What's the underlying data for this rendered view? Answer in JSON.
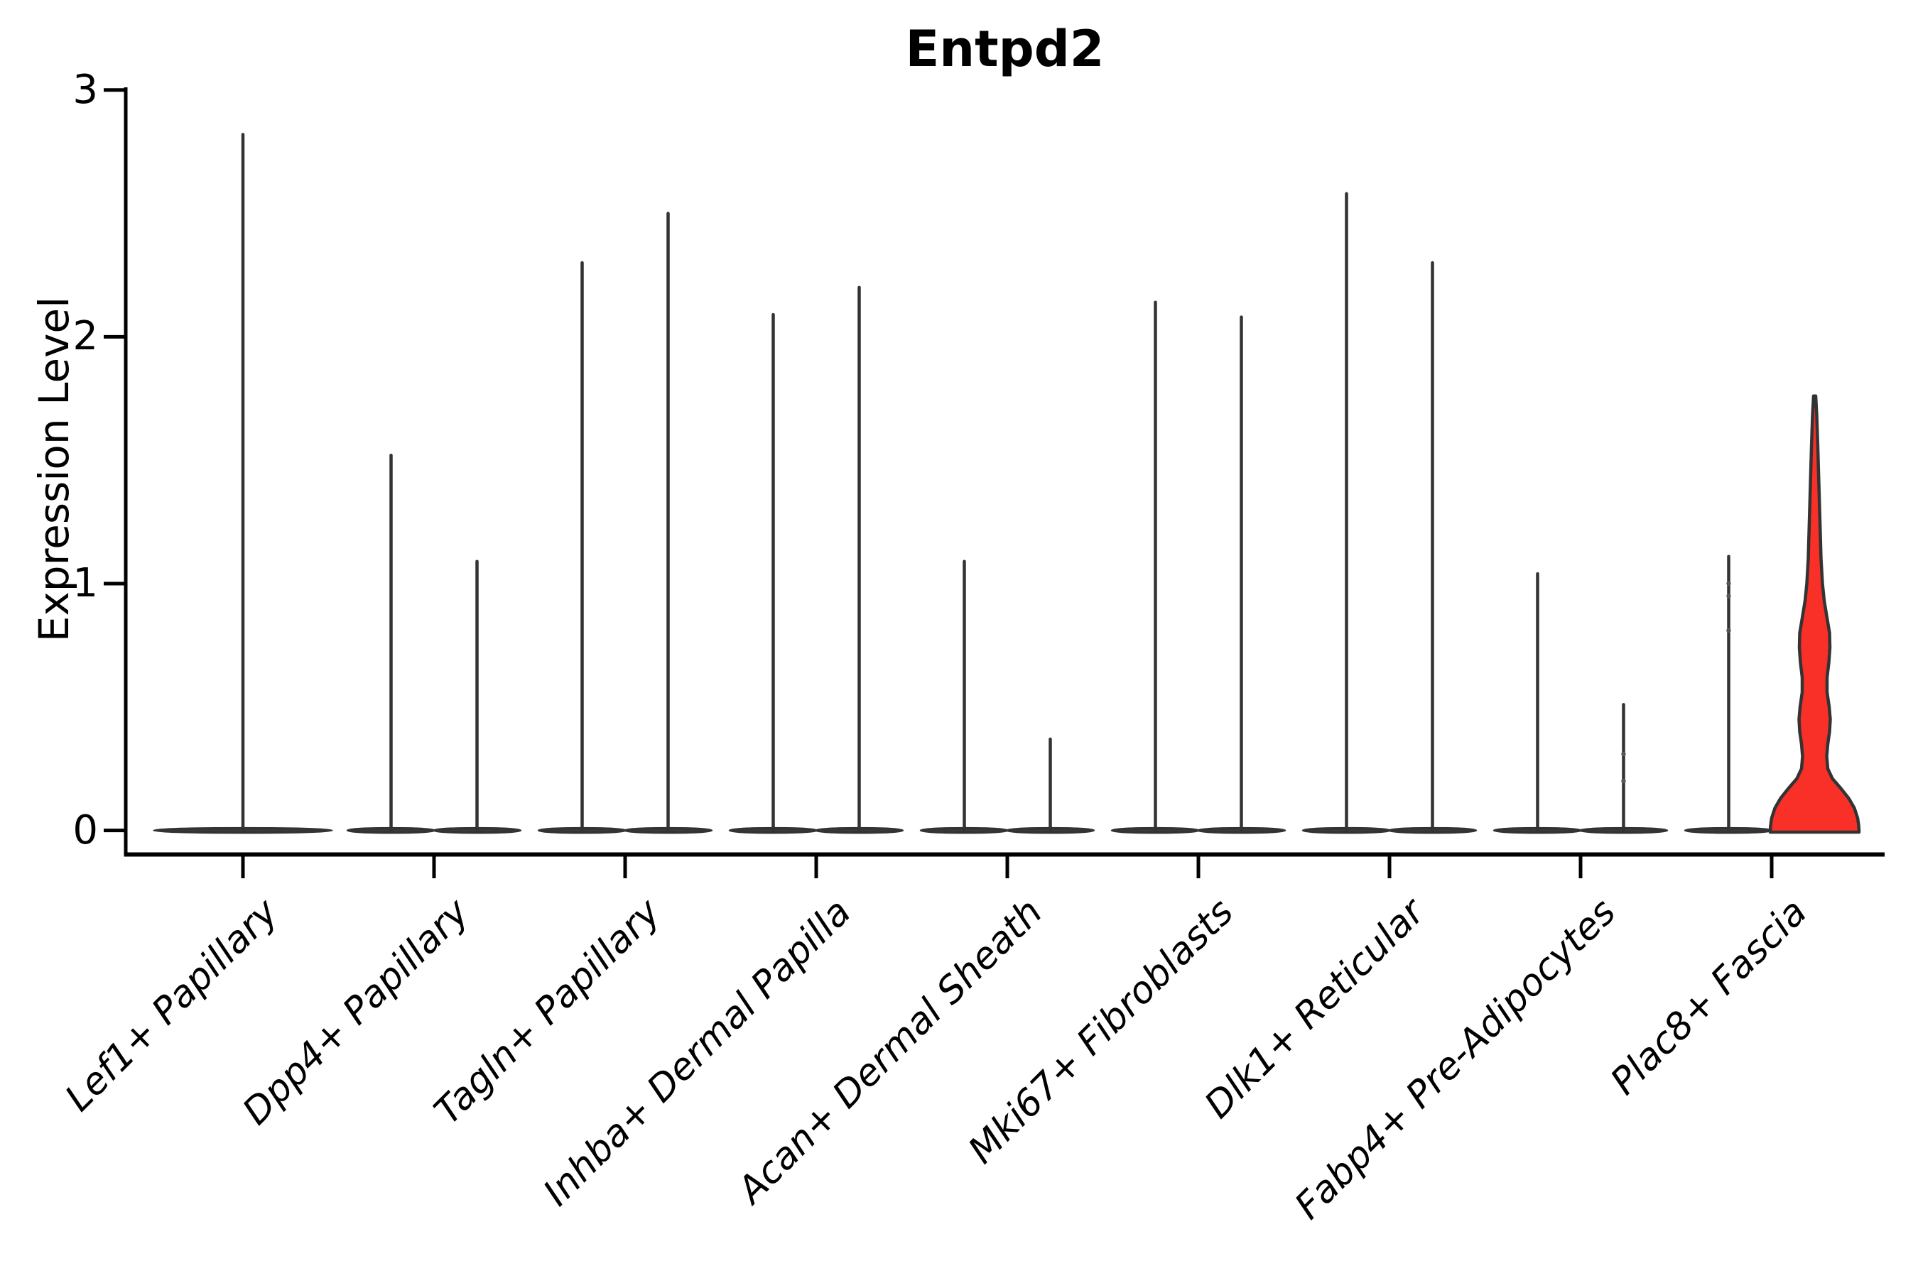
{
  "chart_data": {
    "type": "violin",
    "title": "Entpd2",
    "ylabel": "Expression Level",
    "xlabel": "",
    "yticks": [
      "0",
      "1",
      "2",
      "3"
    ],
    "ylim": [
      0,
      3
    ],
    "grid": false,
    "legend": "none",
    "categories": [
      "Lef1+ Papillary",
      "Dpp4+ Papillary",
      "Tagln+ Papillary",
      "Inhba+ Dermal Papilla",
      "Acan+ Dermal Sheath",
      "Mki67+ Fibroblasts",
      "Dlk1+ Reticular",
      "Fabp4+ Pre-Adipocytes",
      "Plac8+ Fascia"
    ],
    "description": "Collapsed violins: nearly all cells at expression 0 (flat lens at baseline) with a thin density spike rising to the maximum expression value. Two dodged violins per category except the first (single centered violin). Last category right violin is filled red with visible density bulges.",
    "violins": [
      {
        "category": "Lef1+ Papillary",
        "group": "single",
        "max": 2.82,
        "style": "collapsed"
      },
      {
        "category": "Dpp4+ Papillary",
        "group": "left",
        "max": 1.52,
        "style": "collapsed"
      },
      {
        "category": "Dpp4+ Papillary",
        "group": "right",
        "max": 1.09,
        "style": "collapsed"
      },
      {
        "category": "Tagln+ Papillary",
        "group": "left",
        "max": 2.3,
        "style": "collapsed"
      },
      {
        "category": "Tagln+ Papillary",
        "group": "right",
        "max": 2.5,
        "style": "collapsed"
      },
      {
        "category": "Inhba+ Dermal Papilla",
        "group": "left",
        "max": 2.09,
        "style": "collapsed"
      },
      {
        "category": "Inhba+ Dermal Papilla",
        "group": "right",
        "max": 2.2,
        "style": "collapsed"
      },
      {
        "category": "Acan+ Dermal Sheath",
        "group": "left",
        "max": 1.09,
        "style": "collapsed"
      },
      {
        "category": "Acan+ Dermal Sheath",
        "group": "right",
        "max": 0.37,
        "style": "collapsed"
      },
      {
        "category": "Mki67+ Fibroblasts",
        "group": "left",
        "max": 2.14,
        "style": "collapsed"
      },
      {
        "category": "Mki67+ Fibroblasts",
        "group": "right",
        "max": 2.08,
        "style": "collapsed"
      },
      {
        "category": "Dlk1+ Reticular",
        "group": "left",
        "max": 2.58,
        "style": "collapsed"
      },
      {
        "category": "Dlk1+ Reticular",
        "group": "right",
        "max": 2.3,
        "style": "collapsed"
      },
      {
        "category": "Fabp4+ Pre-Adipocytes",
        "group": "left",
        "max": 1.04,
        "style": "collapsed"
      },
      {
        "category": "Fabp4+ Pre-Adipocytes",
        "group": "right",
        "max": 0.51,
        "style": "collapsed",
        "points": [
          0.31,
          0.2
        ]
      },
      {
        "category": "Plac8+ Fascia",
        "group": "left",
        "max": 1.11,
        "style": "collapsed",
        "points": [
          1.0,
          0.95,
          0.81
        ]
      },
      {
        "category": "Plac8+ Fascia",
        "group": "right",
        "max": 1.76,
        "style": "filled",
        "profile": [
          [
            1.76,
            1.5
          ],
          [
            1.68,
            3
          ],
          [
            1.55,
            4.5
          ],
          [
            1.4,
            6
          ],
          [
            1.25,
            7.5
          ],
          [
            1.1,
            9
          ],
          [
            1.0,
            11
          ],
          [
            0.93,
            13.5
          ],
          [
            0.86,
            17.5
          ],
          [
            0.8,
            21
          ],
          [
            0.74,
            21.5
          ],
          [
            0.68,
            20
          ],
          [
            0.62,
            17.5
          ],
          [
            0.56,
            17.5
          ],
          [
            0.5,
            20.5
          ],
          [
            0.45,
            22
          ],
          [
            0.4,
            21
          ],
          [
            0.35,
            18.5
          ],
          [
            0.3,
            17
          ],
          [
            0.25,
            18.5
          ],
          [
            0.21,
            25
          ],
          [
            0.17,
            37
          ],
          [
            0.13,
            48
          ],
          [
            0.09,
            56
          ],
          [
            0.05,
            60.5
          ],
          [
            0.02,
            62
          ],
          [
            0.0,
            62.5
          ]
        ]
      }
    ],
    "colors": {
      "violin_outline": "#333333",
      "lens_fill": "#3a3a3a",
      "highlight_fill": "#F93027",
      "axis": "#000000",
      "jitter_point": "#555555"
    }
  }
}
